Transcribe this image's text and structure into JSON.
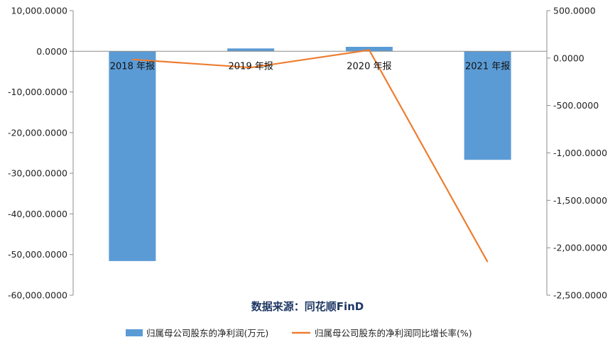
{
  "chart_data": {
    "type": "bar",
    "categories": [
      "2018 年报",
      "2019 年报",
      "2020 年报",
      "2021 年报"
    ],
    "series": [
      {
        "name": "归属母公司股东的净利润(万元)",
        "type": "bar",
        "axis": "left",
        "color": "#5b9bd5",
        "values": [
          -51600,
          700,
          1100,
          -26700
        ]
      },
      {
        "name": "归属母公司股东的净利润同比增长率(%)",
        "type": "line",
        "axis": "right",
        "color": "#ed7d31",
        "values": [
          -15,
          -100,
          85,
          -2150
        ]
      }
    ],
    "y_left": {
      "min": -60000,
      "max": 10000,
      "step": 10000,
      "tick_labels": [
        "10,000.0000",
        "0.0000",
        "-10,000.0000",
        "-20,000.0000",
        "-30,000.0000",
        "-40,000.0000",
        "-50,000.0000",
        "-60,000.0000"
      ]
    },
    "y_right": {
      "min": -2500,
      "max": 500,
      "step": 500,
      "tick_labels": [
        "500.0000",
        "0.0000",
        "-500.0000",
        "-1,000.0000",
        "-1,500.0000",
        "-2,000.0000",
        "-2,500.0000"
      ]
    },
    "source_note": "数据来源：同花顺FinD",
    "legend_position": "bottom",
    "grid": false
  }
}
